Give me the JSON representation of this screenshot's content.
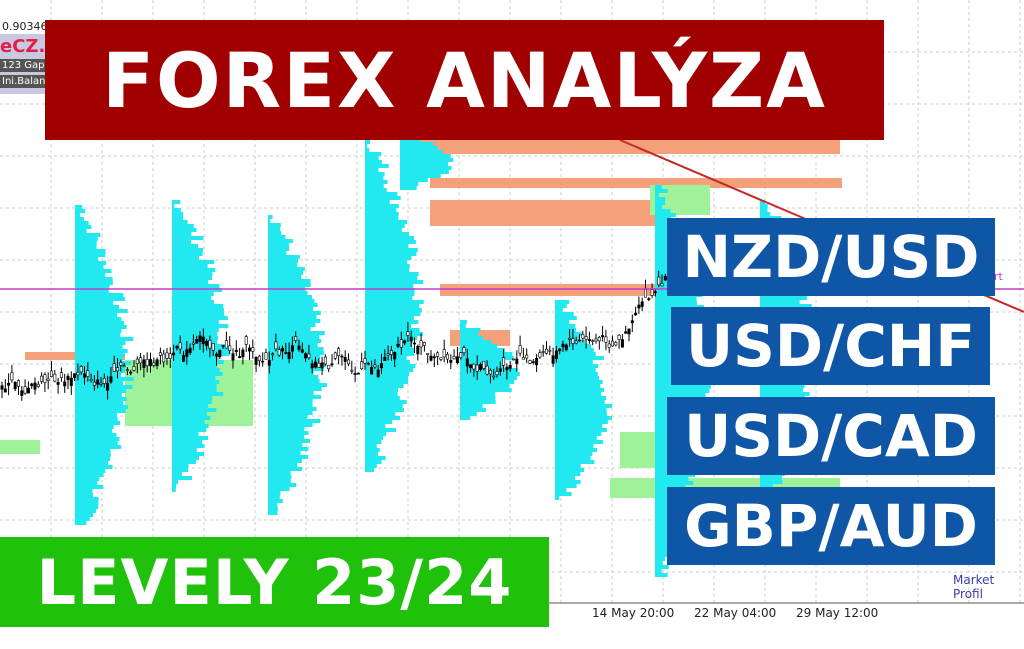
{
  "header": {
    "price": "0.90346",
    "logo_text": "eCZ.",
    "panel_buttons": [
      "123 Gap",
      "Ini.Balanc"
    ]
  },
  "banners": {
    "title": "FOREX ANALÝZA",
    "subtitle": "LEVELY 23/24",
    "pairs": [
      "NZD/USD",
      "USD/CHF",
      "USD/CAD",
      "GBP/AUD"
    ]
  },
  "colors": {
    "title_bg": "#a00000",
    "subtitle_bg": "#1fc10b",
    "pair_bg": "#0f56a6",
    "profile": "#22e8ef",
    "value_area": "#f4a07a",
    "green_zone": "#9ff19a",
    "candle": "#000000",
    "level_line": "#c43ccf",
    "trend_line": "#c42a2a"
  },
  "chart_data": {
    "type": "candlestick",
    "x_tick_labels": [
      "14 May 20:00",
      "22 May 04:00",
      "29 May 12:00"
    ],
    "annotations": [
      "Market Profil",
      "rt"
    ],
    "grid": true
  }
}
